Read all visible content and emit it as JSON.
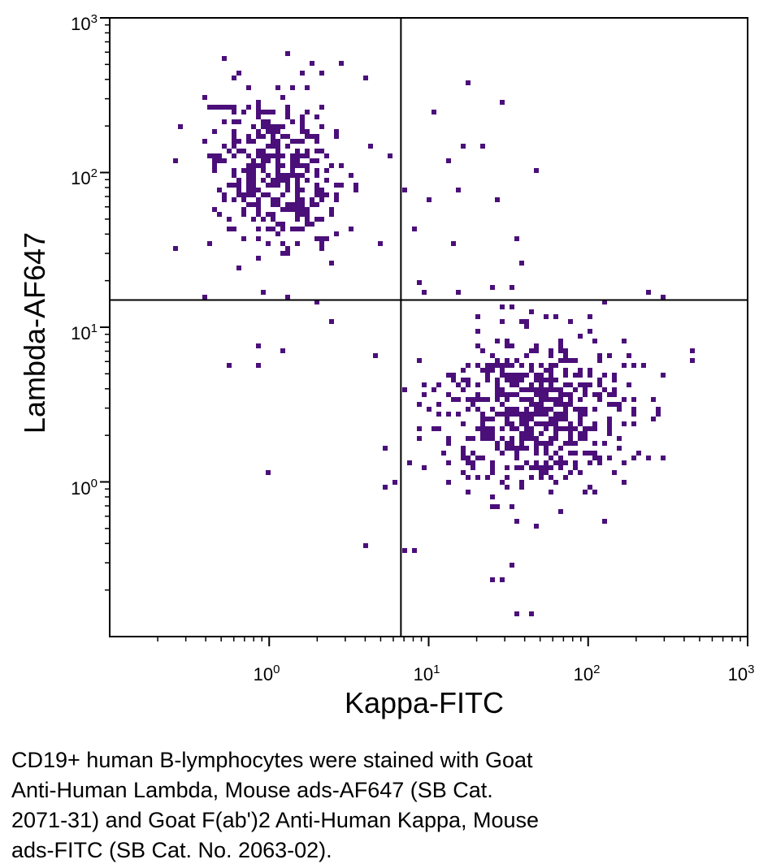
{
  "chart_data": {
    "type": "scatter",
    "title": "",
    "xlabel": "Kappa-FITC",
    "ylabel": "Lambda-AF647",
    "xscale": "log",
    "yscale": "log",
    "xlim": [
      0.1,
      1000
    ],
    "ylim": [
      0.1,
      1000
    ],
    "grid": false,
    "x_ticks": [
      {
        "value": 1,
        "base": "10",
        "exp": "0"
      },
      {
        "value": 10,
        "base": "10",
        "exp": "1"
      },
      {
        "value": 100,
        "base": "10",
        "exp": "2"
      },
      {
        "value": 1000,
        "base": "10",
        "exp": "3"
      }
    ],
    "y_ticks": [
      {
        "value": 1,
        "base": "10",
        "exp": "0"
      },
      {
        "value": 10,
        "base": "10",
        "exp": "1"
      },
      {
        "value": 100,
        "base": "10",
        "exp": "2"
      },
      {
        "value": 1000,
        "base": "10",
        "exp": "3"
      }
    ],
    "quadrant_gates": {
      "x": 6.7,
      "y": 15
    },
    "point_color": "#4b0f7a",
    "populations": [
      {
        "name": "Lambda+ (upper-left)",
        "center_x": 1.1,
        "center_y": 100,
        "spread_x_log": 0.2,
        "spread_y_log": 0.26,
        "count": 380
      },
      {
        "name": "Kappa+ (lower-right)",
        "center_x": 45,
        "center_y": 2.9,
        "spread_x_log": 0.3,
        "spread_y_log": 0.26,
        "count": 560
      },
      {
        "name": "scattered events",
        "points": [
          [
            0.25,
            32
          ],
          [
            0.4,
            15.5
          ],
          [
            0.55,
            5.6
          ],
          [
            0.85,
            7.5
          ],
          [
            0.85,
            5.5
          ],
          [
            1.2,
            7
          ],
          [
            1.0,
            1.15
          ],
          [
            2.4,
            10.8
          ],
          [
            4.5,
            6.5
          ],
          [
            4,
            0.39
          ],
          [
            6,
            1.0
          ],
          [
            5.5,
            0.95
          ],
          [
            7.2,
            0.37
          ],
          [
            8.2,
            0.37
          ],
          [
            10.5,
            240
          ],
          [
            13,
            120
          ],
          [
            16,
            150
          ],
          [
            18,
            370
          ],
          [
            22,
            150
          ],
          [
            27,
            65
          ],
          [
            28,
            280
          ],
          [
            35,
            37
          ],
          [
            37,
            26
          ],
          [
            48,
            100
          ],
          [
            8,
            42
          ],
          [
            10,
            65
          ],
          [
            15,
            75
          ],
          [
            14,
            35
          ],
          [
            9.5,
            17
          ],
          [
            25,
            17.5
          ],
          [
            33,
            18
          ],
          [
            240,
            16.5
          ],
          [
            290,
            16
          ],
          [
            460,
            7
          ],
          [
            240,
            1.45
          ],
          [
            25,
            0.24
          ],
          [
            28,
            0.24
          ],
          [
            34,
            0.3
          ],
          [
            36,
            0.14
          ],
          [
            43,
            0.14
          ],
          [
            7,
            75
          ],
          [
            5,
            35
          ],
          [
            3.2,
            43
          ],
          [
            5.8,
            130
          ],
          [
            4.4,
            150
          ],
          [
            2.8,
            500
          ],
          [
            3.9,
            400
          ],
          [
            1.3,
            580
          ]
        ]
      }
    ]
  },
  "caption": {
    "lines": [
      "CD19+ human B-lymphocytes were stained with Goat",
      "Anti-Human Lambda, Mouse ads-AF647 (SB Cat.",
      "2071-31) and Goat F(ab')2 Anti-Human Kappa, Mouse",
      "ads-FITC (SB Cat. No. 2063-02)."
    ]
  }
}
